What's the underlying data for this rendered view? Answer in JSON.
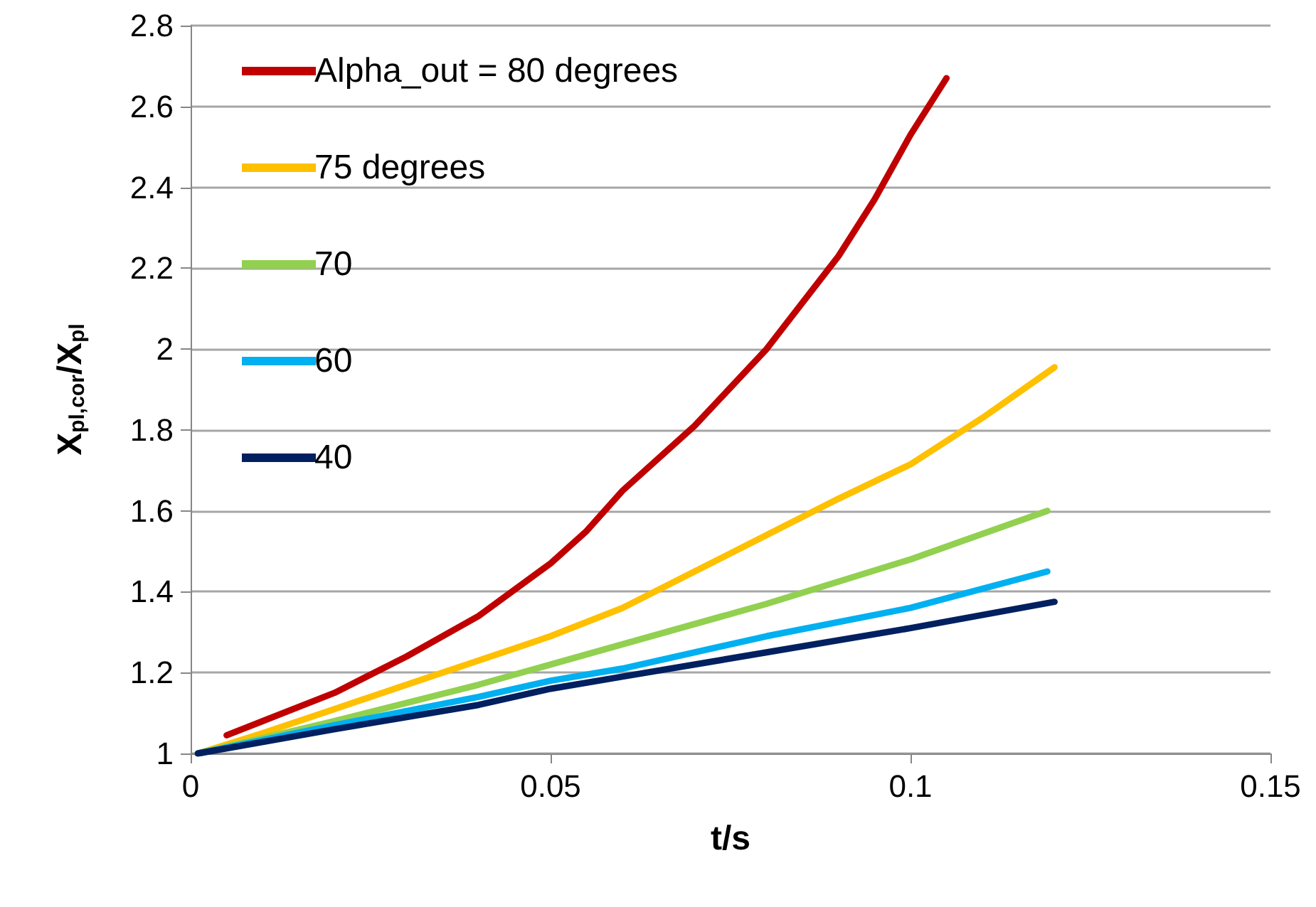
{
  "chart_data": {
    "type": "line",
    "xlabel": "t/s",
    "ylabel": "X$_{pl,cor}$/X$_{pl}$",
    "xlim": [
      0,
      0.15
    ],
    "xticks": [
      0,
      0.05,
      0.1,
      0.15
    ],
    "ylim": [
      1,
      2.8
    ],
    "yticks": [
      1,
      1.2,
      1.4,
      1.6,
      1.8,
      2,
      2.2,
      2.4,
      2.6,
      2.8
    ],
    "grid": "y",
    "legend": "top left",
    "marker": "none",
    "line_style": "solid",
    "series": [
      {
        "name": "Alpha_out = 80 degrees",
        "color": "#c00000",
        "x": [
          0.005,
          0.01,
          0.02,
          0.03,
          0.04,
          0.05,
          0.055,
          0.06,
          0.07,
          0.08,
          0.09,
          0.095,
          0.1,
          0.105
        ],
        "values": [
          1.045,
          1.08,
          1.15,
          1.24,
          1.34,
          1.47,
          1.55,
          1.65,
          1.81,
          2.0,
          2.23,
          2.37,
          2.53,
          2.67
        ]
      },
      {
        "name": "75 degrees",
        "color": "#ffc000",
        "x": [
          0.001,
          0.01,
          0.02,
          0.03,
          0.04,
          0.05,
          0.06,
          0.07,
          0.08,
          0.09,
          0.1,
          0.11,
          0.12
        ],
        "values": [
          1.0,
          1.05,
          1.11,
          1.17,
          1.23,
          1.29,
          1.36,
          1.45,
          1.54,
          1.63,
          1.715,
          1.83,
          1.955
        ]
      },
      {
        "name": "70",
        "color": "#92d050",
        "x": [
          0.001,
          0.02,
          0.04,
          0.05,
          0.06,
          0.08,
          0.1,
          0.119
        ],
        "values": [
          1.0,
          1.08,
          1.17,
          1.22,
          1.27,
          1.37,
          1.48,
          1.6
        ]
      },
      {
        "name": "60",
        "color": "#00b0f0",
        "x": [
          0.001,
          0.02,
          0.04,
          0.05,
          0.06,
          0.08,
          0.1,
          0.119
        ],
        "values": [
          1.0,
          1.07,
          1.14,
          1.18,
          1.21,
          1.29,
          1.36,
          1.45
        ]
      },
      {
        "name": "40",
        "color": "#002060",
        "x": [
          0.001,
          0.02,
          0.04,
          0.05,
          0.06,
          0.08,
          0.1,
          0.12
        ],
        "values": [
          1.0,
          1.06,
          1.12,
          1.16,
          1.19,
          1.25,
          1.31,
          1.375
        ]
      }
    ]
  }
}
